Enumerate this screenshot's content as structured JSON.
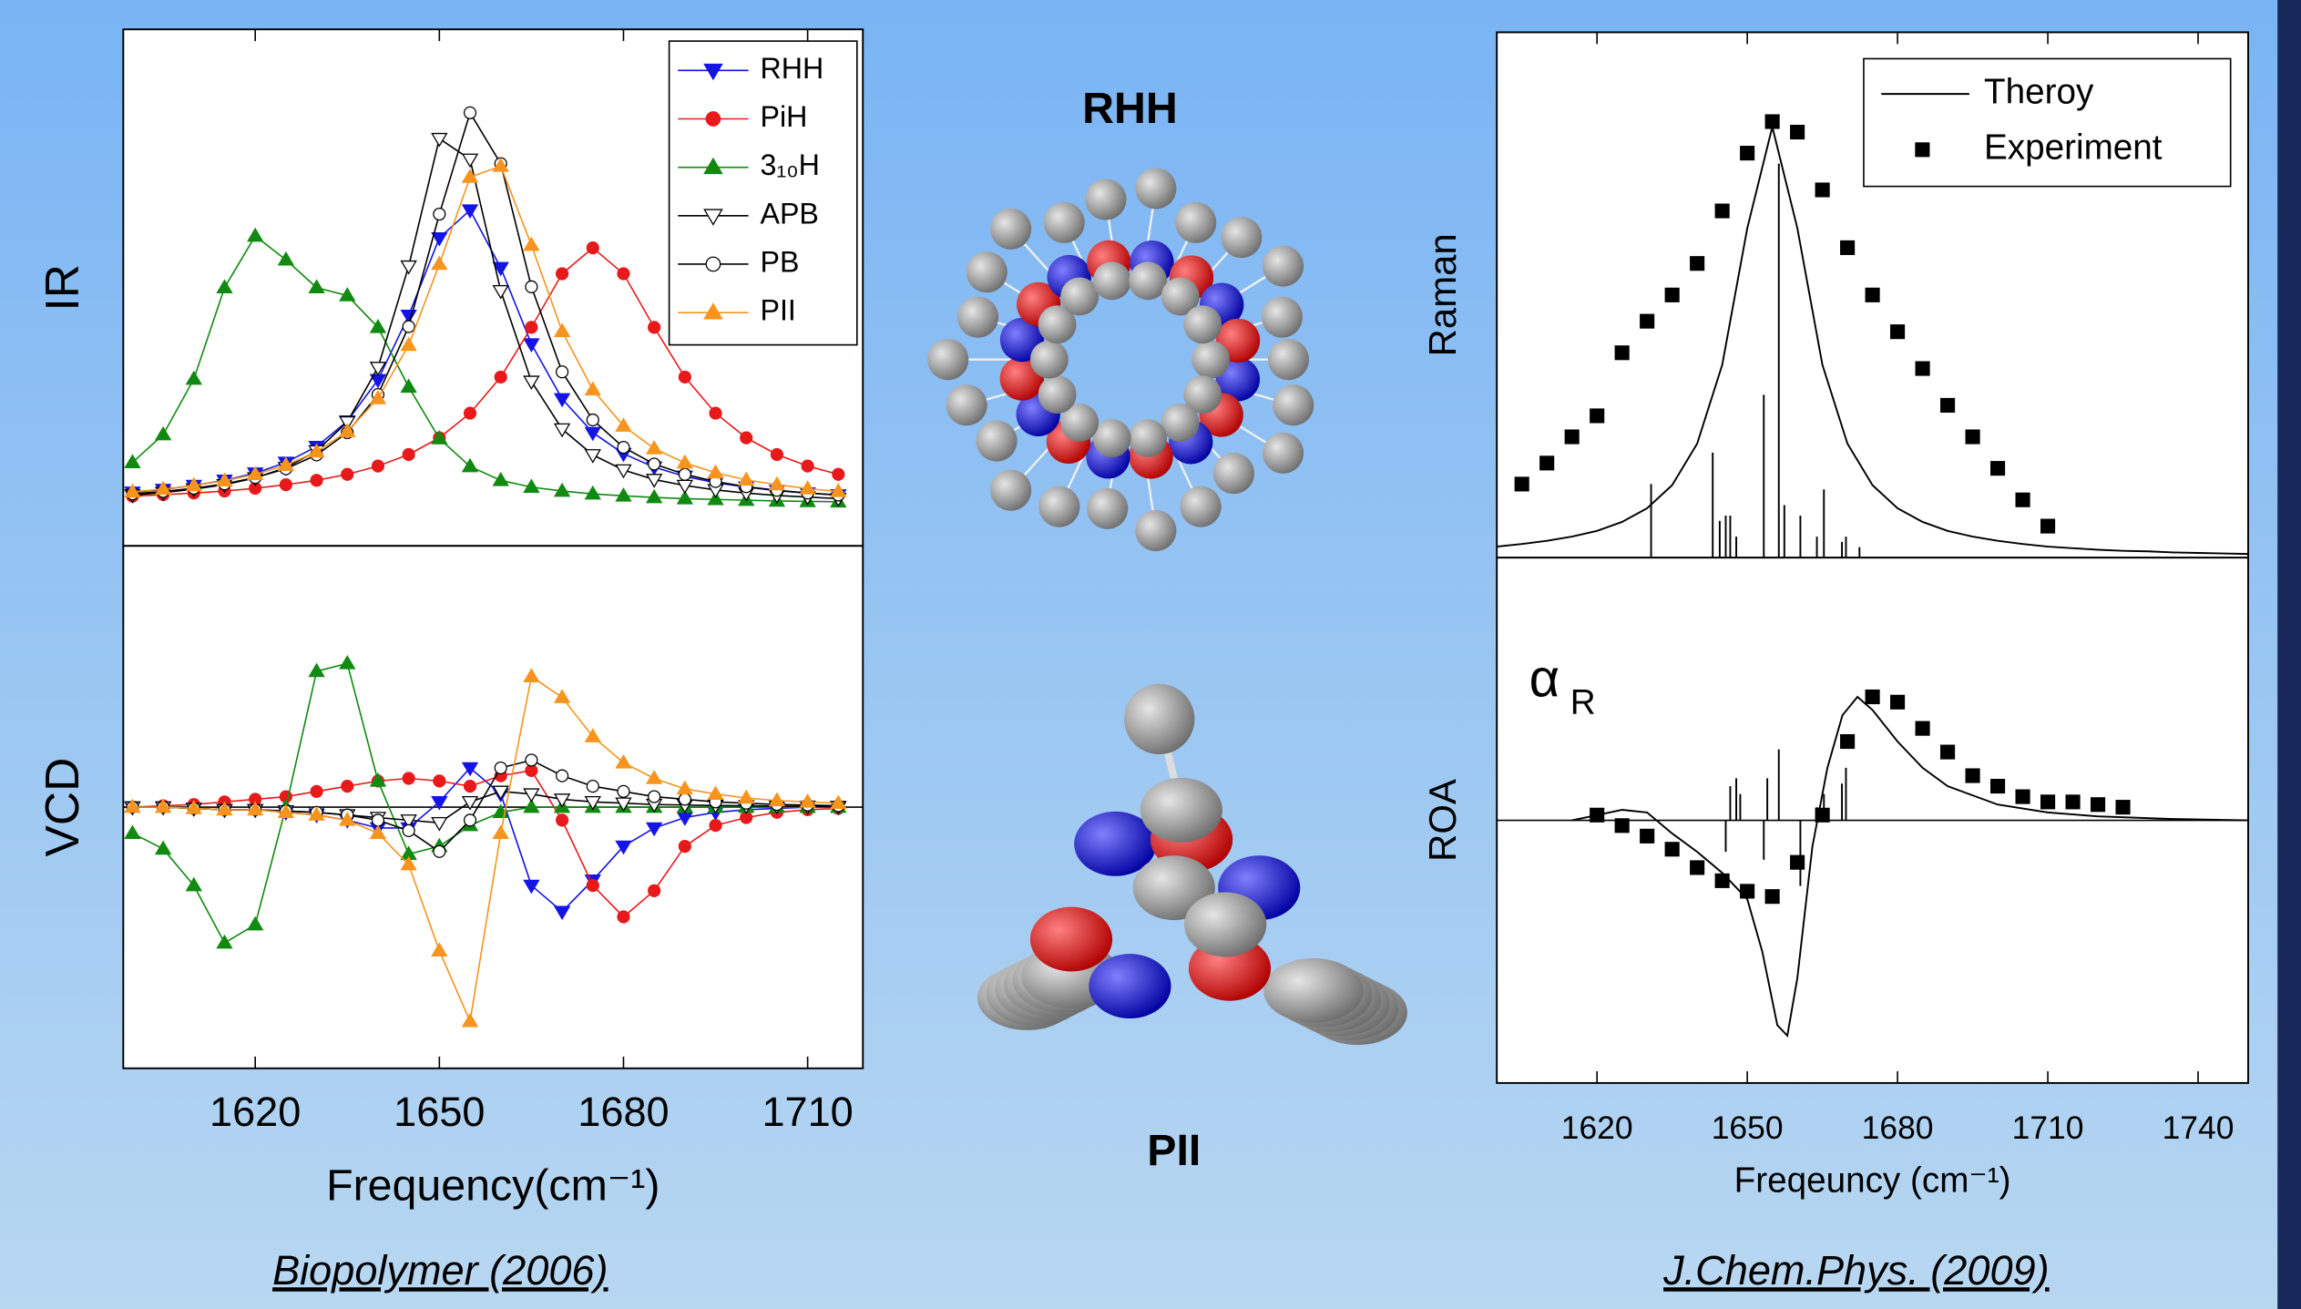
{
  "chart_data": [
    {
      "type": "line",
      "xlabel": "Frequency(cm⁻¹)",
      "caption": "Biopolymer (2006)",
      "xlim": [
        1598.5,
        1719
      ],
      "xticks": [
        1620,
        1650,
        1680,
        1710
      ],
      "panels": [
        {
          "ylabel": "IR",
          "ylim": [
            -0.1,
            1.2
          ],
          "legend": "upper right",
          "x": [
            1600,
            1605,
            1610,
            1615,
            1620,
            1625,
            1630,
            1635,
            1640,
            1645,
            1650,
            1655,
            1660,
            1665,
            1670,
            1675,
            1680,
            1685,
            1690,
            1695,
            1700,
            1705,
            1710,
            1715
          ],
          "series": [
            {
              "name": "RHH",
              "color": "#1414e6",
              "marker": "triangle-down",
              "open": false,
              "values": [
                0.035,
                0.042,
                0.052,
                0.065,
                0.083,
                0.11,
                0.15,
                0.214,
                0.318,
                0.48,
                0.675,
                0.745,
                0.6,
                0.408,
                0.27,
                0.185,
                0.132,
                0.098,
                0.075,
                0.059,
                0.048,
                0.039,
                0.033,
                0.028
              ]
            },
            {
              "name": "PiH",
              "color": "#e8191b",
              "marker": "circle",
              "open": false,
              "values": [
                0.025,
                0.029,
                0.033,
                0.038,
                0.045,
                0.054,
                0.065,
                0.08,
                0.101,
                0.13,
                0.172,
                0.234,
                0.325,
                0.45,
                0.585,
                0.65,
                0.585,
                0.45,
                0.325,
                0.234,
                0.172,
                0.13,
                0.101,
                0.08
              ]
            },
            {
              "name": "3₁₀H",
              "color": "#108a10",
              "marker": "triangle-up",
              "open": false,
              "values": [
                0.11,
                0.18,
                0.32,
                0.55,
                0.68,
                0.62,
                0.55,
                0.53,
                0.45,
                0.3,
                0.17,
                0.1,
                0.065,
                0.048,
                0.038,
                0.031,
                0.026,
                0.022,
                0.019,
                0.017,
                0.015,
                0.013,
                0.012,
                0.011
              ]
            },
            {
              "name": "APB",
              "color": "#000000",
              "marker": "triangle-down",
              "open": true,
              "values": [
                0.028,
                0.034,
                0.043,
                0.054,
                0.071,
                0.097,
                0.139,
                0.212,
                0.349,
                0.604,
                0.925,
                0.873,
                0.542,
                0.314,
                0.194,
                0.129,
                0.091,
                0.067,
                0.052,
                0.041,
                0.033,
                0.027,
                0.023,
                0.019
              ]
            },
            {
              "name": "PB",
              "color": "#000000",
              "marker": "circle",
              "open": true,
              "values": [
                0.031,
                0.037,
                0.045,
                0.056,
                0.072,
                0.094,
                0.129,
                0.185,
                0.281,
                0.452,
                0.735,
                0.99,
                0.862,
                0.552,
                0.338,
                0.217,
                0.148,
                0.106,
                0.08,
                0.062,
                0.049,
                0.04,
                0.033,
                0.028
              ]
            },
            {
              "name": "PII",
              "color": "#f7941d",
              "marker": "triangle-up",
              "open": false,
              "values": [
                0.036,
                0.043,
                0.052,
                0.064,
                0.08,
                0.103,
                0.137,
                0.188,
                0.271,
                0.405,
                0.609,
                0.828,
                0.856,
                0.657,
                0.44,
                0.293,
                0.202,
                0.145,
                0.109,
                0.084,
                0.066,
                0.054,
                0.044,
                0.037
              ]
            }
          ]
        },
        {
          "ylabel": "VCD",
          "ylim": [
            -1,
            1
          ],
          "zero_line": true,
          "x": [
            1600,
            1605,
            1610,
            1615,
            1620,
            1625,
            1630,
            1635,
            1640,
            1645,
            1650,
            1655,
            1660,
            1665,
            1670,
            1675,
            1680,
            1685,
            1690,
            1695,
            1700,
            1705,
            1710,
            1715
          ],
          "series": [
            {
              "color": "#1414e6",
              "marker": "triangle-down",
              "open": false,
              "values": [
                0,
                0,
                -0.005,
                -0.01,
                -0.01,
                -0.02,
                -0.03,
                -0.05,
                -0.08,
                -0.08,
                0.02,
                0.15,
                0.05,
                -0.3,
                -0.4,
                -0.28,
                -0.15,
                -0.08,
                -0.04,
                -0.02,
                -0.01,
                -0.005,
                0,
                0
              ]
            },
            {
              "color": "#e8191b",
              "marker": "circle",
              "open": false,
              "values": [
                0,
                0.005,
                0.01,
                0.02,
                0.03,
                0.04,
                0.06,
                0.08,
                0.1,
                0.11,
                0.1,
                0.08,
                0.12,
                0.14,
                -0.05,
                -0.3,
                -0.42,
                -0.32,
                -0.15,
                -0.07,
                -0.04,
                -0.02,
                -0.01,
                -0.005
              ]
            },
            {
              "color": "#108a10",
              "marker": "triangle-up",
              "open": false,
              "values": [
                -0.1,
                -0.16,
                -0.3,
                -0.52,
                -0.45,
                0,
                0.52,
                0.55,
                0.1,
                -0.18,
                -0.15,
                -0.07,
                -0.02,
                0,
                0,
                0,
                0,
                0,
                0,
                0,
                0,
                0,
                0,
                0
              ]
            },
            {
              "color": "#000000",
              "marker": "triangle-down",
              "open": true,
              "values": [
                0,
                0,
                -0.005,
                -0.01,
                -0.01,
                -0.015,
                -0.02,
                -0.03,
                -0.04,
                -0.05,
                -0.06,
                0.02,
                0.06,
                0.05,
                0.03,
                0.02,
                0.015,
                0.01,
                0.008,
                0.006,
                0.005,
                0.004,
                0.003,
                0.002
              ]
            },
            {
              "color": "#000000",
              "marker": "circle",
              "open": true,
              "values": [
                0,
                0,
                -0.005,
                -0.01,
                -0.01,
                -0.015,
                -0.02,
                -0.03,
                -0.05,
                -0.09,
                -0.17,
                -0.05,
                0.15,
                0.18,
                0.12,
                0.08,
                0.06,
                0.04,
                0.03,
                0.02,
                0.015,
                0.01,
                0.008,
                0.005
              ]
            },
            {
              "color": "#f7941d",
              "marker": "triangle-up",
              "open": false,
              "values": [
                0,
                0,
                -0.005,
                -0.01,
                -0.01,
                -0.02,
                -0.03,
                -0.05,
                -0.1,
                -0.22,
                -0.55,
                -0.82,
                -0.1,
                0.5,
                0.42,
                0.27,
                0.17,
                0.11,
                0.07,
                0.05,
                0.035,
                0.025,
                0.02,
                0.015
              ]
            }
          ]
        }
      ]
    },
    {
      "type": "line",
      "xlabel": "Freqeuncy (cm⁻¹)",
      "caption": "J.Chem.Phys. (2009)",
      "xlim": [
        1600,
        1750
      ],
      "xticks": [
        1620,
        1650,
        1680,
        1710,
        1740
      ],
      "panels": [
        {
          "ylabel": "Raman",
          "ylim": [
            0,
            1
          ],
          "legend": "upper right",
          "series": [
            {
              "name": "Theroy",
              "style": "line",
              "color": "#000000",
              "x": [
                1600,
                1605,
                1610,
                1615,
                1620,
                1625,
                1630,
                1635,
                1640,
                1645,
                1650,
                1655,
                1660,
                1665,
                1670,
                1675,
                1680,
                1685,
                1690,
                1695,
                1700,
                1705,
                1710,
                1715,
                1720,
                1725,
                1730,
                1735,
                1740,
                1745,
                1750
              ],
              "values": [
                0.021,
                0.026,
                0.032,
                0.04,
                0.051,
                0.068,
                0.094,
                0.138,
                0.217,
                0.367,
                0.627,
                0.82,
                0.627,
                0.367,
                0.217,
                0.138,
                0.094,
                0.068,
                0.051,
                0.04,
                0.032,
                0.026,
                0.021,
                0.018,
                0.015,
                0.013,
                0.012,
                0.01,
                0.009,
                0.008,
                0.007
              ]
            },
            {
              "name": "Experiment",
              "style": "square",
              "color": "#000000",
              "x": [
                1605,
                1610,
                1615,
                1620,
                1625,
                1630,
                1635,
                1640,
                1645,
                1650,
                1655,
                1660,
                1665,
                1670,
                1675,
                1680,
                1685,
                1690,
                1695,
                1700,
                1705,
                1710
              ],
              "values": [
                0.14,
                0.18,
                0.23,
                0.27,
                0.39,
                0.45,
                0.5,
                0.56,
                0.66,
                0.77,
                0.83,
                0.81,
                0.7,
                0.59,
                0.5,
                0.43,
                0.36,
                0.29,
                0.23,
                0.17,
                0.11,
                0.06
              ]
            },
            {
              "style": "stick",
              "color": "#000000",
              "x": [
                1630.8,
                1643.1,
                1644.5,
                1645.7,
                1646.6,
                1647.8,
                1653.3,
                1656.3,
                1657.4,
                1660.6,
                1663.9,
                1665.3,
                1668.9,
                1669.7,
                1672.4
              ],
              "values": [
                0.14,
                0.2,
                0.07,
                0.08,
                0.08,
                0.04,
                0.31,
                0.75,
                0.1,
                0.08,
                0.04,
                0.13,
                0.03,
                0.04,
                0.02
              ]
            }
          ]
        },
        {
          "ylabel": "ROA",
          "ylim": [
            -1,
            1
          ],
          "zero_line": true,
          "annotation": {
            "symbol": "α",
            "subscript": "R"
          },
          "series": [
            {
              "style": "line",
              "color": "#000000",
              "x": [
                1615,
                1620,
                1625,
                1630,
                1635,
                1640,
                1645,
                1650,
                1653,
                1656,
                1658,
                1660,
                1663,
                1666,
                1669,
                1672,
                1675,
                1680,
                1685,
                1690,
                1700,
                1710,
                1720,
                1735,
                1750
              ],
              "values": [
                0,
                0.02,
                0.04,
                0.03,
                -0.05,
                -0.12,
                -0.2,
                -0.3,
                -0.5,
                -0.78,
                -0.82,
                -0.6,
                -0.1,
                0.2,
                0.4,
                0.47,
                0.42,
                0.3,
                0.2,
                0.13,
                0.06,
                0.03,
                0.015,
                0.005,
                0
              ]
            },
            {
              "style": "square",
              "color": "#000000",
              "x": [
                1620,
                1625,
                1630,
                1635,
                1640,
                1645,
                1650,
                1655,
                1660,
                1665,
                1670,
                1675,
                1680,
                1685,
                1690,
                1695,
                1700,
                1705,
                1710,
                1715,
                1720,
                1725
              ],
              "values": [
                0.02,
                -0.02,
                -0.06,
                -0.11,
                -0.18,
                -0.23,
                -0.27,
                -0.29,
                -0.16,
                0.02,
                0.3,
                0.47,
                0.45,
                0.35,
                0.26,
                0.17,
                0.13,
                0.09,
                0.07,
                0.07,
                0.06,
                0.05
              ]
            },
            {
              "style": "stick",
              "color": "#000000",
              "x": [
                1645.7,
                1646.6,
                1647.8,
                1648.6,
                1653.3,
                1654,
                1656.3,
                1660.6,
                1663.9,
                1665.3,
                1668.9,
                1669.7
              ],
              "values": [
                -0.12,
                0.13,
                0.16,
                0.1,
                -0.15,
                0.16,
                0.27,
                -0.25,
                0.05,
                0.1,
                0.14,
                0.2
              ]
            }
          ]
        }
      ]
    }
  ],
  "molecules": [
    "RHH",
    "PII"
  ]
}
